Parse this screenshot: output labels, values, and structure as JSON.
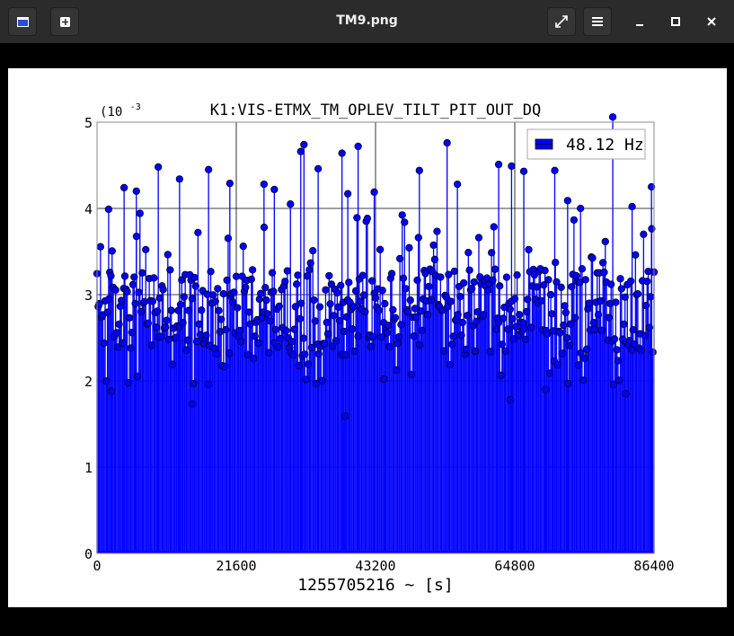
{
  "window": {
    "title": "TM9.png",
    "icons": {
      "app": "image-viewer-icon",
      "new": "new-tab-icon",
      "fullscreen": "fullscreen-icon",
      "menu": "hamburger-menu-icon",
      "minimize": "minimize-icon",
      "maximize": "maximize-icon",
      "close": "close-icon"
    }
  },
  "chart_data": {
    "type": "scatter",
    "title": "K1:VIS-ETMX_TM_OPLEV_TILT_PIT_OUT_DQ",
    "xlabel": "1255705216 ~ [s]",
    "ylabel": "",
    "y_exponent": "(10",
    "y_exponent_power": "-3",
    "xlim": [
      0,
      86400
    ],
    "ylim": [
      0,
      5
    ],
    "x_ticks": [
      "0",
      "21600",
      "43200",
      "64800",
      "86400"
    ],
    "y_ticks": [
      "0",
      "1",
      "2",
      "3",
      "4",
      "5"
    ],
    "grid": true,
    "legend_position": "top-right",
    "series": [
      {
        "name": "48.12 Hz",
        "color": "#0000ff",
        "style": "stem",
        "x_start": 0,
        "x_end": 86400,
        "x_step": 180,
        "y_typical_range": [
          2.3,
          3.3
        ],
        "peaks": [
          {
            "x": 38000,
            "y": 4.64
          },
          {
            "x": 40500,
            "y": 4.72
          },
          {
            "x": 9500,
            "y": 4.48
          },
          {
            "x": 12800,
            "y": 4.34
          },
          {
            "x": 17300,
            "y": 4.45
          },
          {
            "x": 20600,
            "y": 4.29
          },
          {
            "x": 25900,
            "y": 4.28
          },
          {
            "x": 27500,
            "y": 4.22
          },
          {
            "x": 31600,
            "y": 4.66
          },
          {
            "x": 32100,
            "y": 4.74
          },
          {
            "x": 34300,
            "y": 4.46
          },
          {
            "x": 38900,
            "y": 4.17
          },
          {
            "x": 43000,
            "y": 4.19
          },
          {
            "x": 50000,
            "y": 4.44
          },
          {
            "x": 54300,
            "y": 4.76
          },
          {
            "x": 55900,
            "y": 4.28
          },
          {
            "x": 62300,
            "y": 4.51
          },
          {
            "x": 64300,
            "y": 4.49
          },
          {
            "x": 66200,
            "y": 4.43
          },
          {
            "x": 71000,
            "y": 4.44
          },
          {
            "x": 73000,
            "y": 4.09
          },
          {
            "x": 80000,
            "y": 5.06
          },
          {
            "x": 86000,
            "y": 4.25
          },
          {
            "x": 4200,
            "y": 4.24
          },
          {
            "x": 6100,
            "y": 4.2
          },
          {
            "x": 1800,
            "y": 3.99
          },
          {
            "x": 30000,
            "y": 4.05
          },
          {
            "x": 75000,
            "y": 4.0
          },
          {
            "x": 83000,
            "y": 4.02
          }
        ],
        "dips": [
          {
            "x": 2200,
            "y": 1.88
          },
          {
            "x": 14800,
            "y": 1.73
          },
          {
            "x": 38500,
            "y": 1.59
          },
          {
            "x": 44500,
            "y": 2.02
          },
          {
            "x": 64100,
            "y": 1.78
          },
          {
            "x": 69600,
            "y": 1.9
          },
          {
            "x": 82000,
            "y": 1.85
          }
        ]
      }
    ]
  }
}
